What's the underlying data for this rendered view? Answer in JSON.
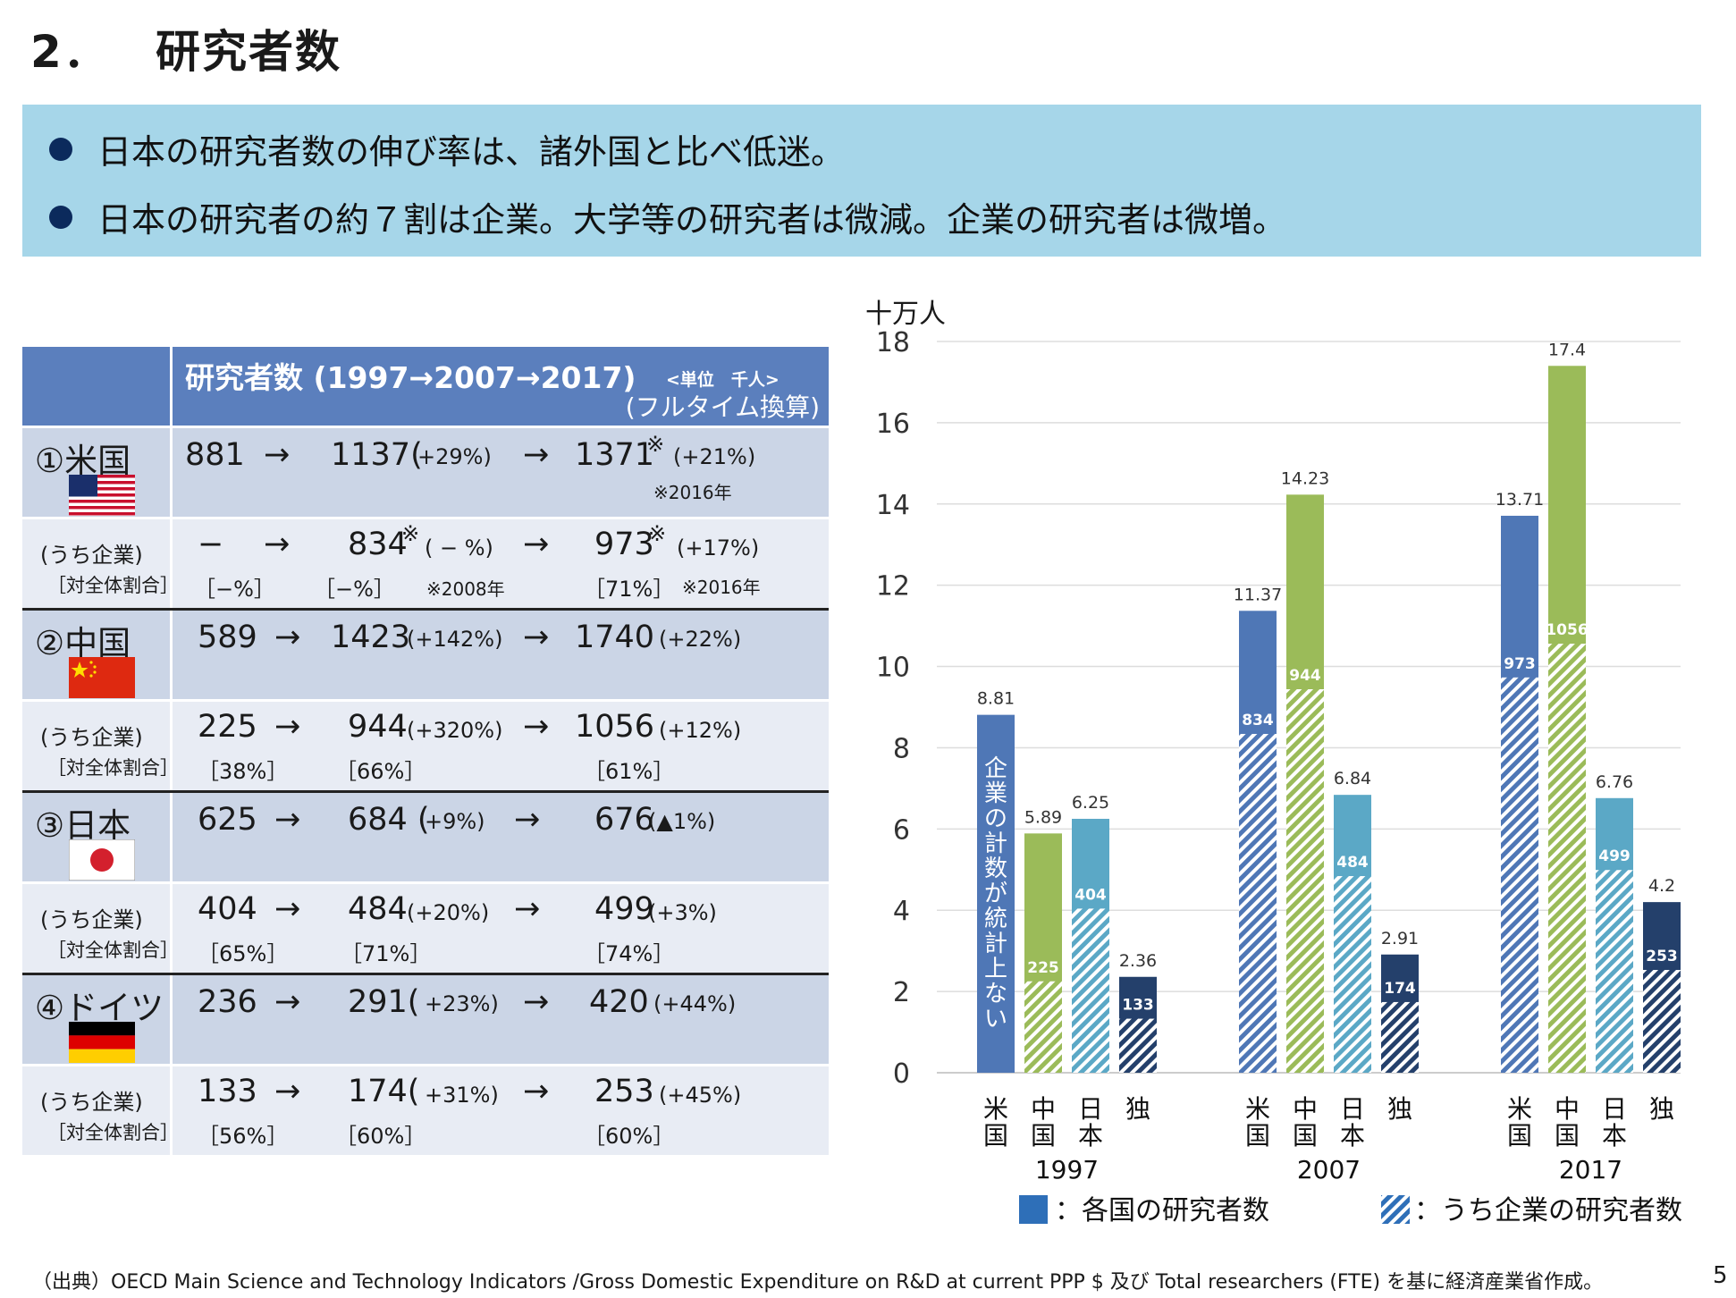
{
  "header": {
    "number": "2．",
    "title": "研究者数"
  },
  "bullets": [
    "日本の研究者数の伸び率は、諸外国と比べ低迷。",
    "日本の研究者の約７割は企業。大学等の研究者は微減。企業の研究者は微増。"
  ],
  "table": {
    "heading": "研究者数 (1997→2007→2017)",
    "unit": "<単位　千人>",
    "fte": "(フルタイム換算)",
    "sub_label": "(うち企業)",
    "share_label": "［対全体割合］",
    "arrow": "→",
    "countries": [
      {
        "name": "①米国",
        "total": {
          "v1997": "881",
          "v2007": "1137(",
          "p2007": "+29%)",
          "v2017": "1371",
          "mark2017": "※",
          "p2017": "(+21%)",
          "note2017": "※2016年"
        },
        "corp": {
          "v1997": "−",
          "v2007": "834",
          "mark2007": "※",
          "p2007": "( − %)",
          "v2017": "973",
          "mark2017": "※",
          "p2017": "(+17%)",
          "s1997": "［−%］",
          "s2007": "［−%］",
          "note2007": "※2008年",
          "s2017": "［71%］",
          "note2017": "※2016年"
        }
      },
      {
        "name": "②中国",
        "total": {
          "v1997": "589",
          "v2007": "1423",
          "p2007": "(+142%)",
          "v2017": "1740",
          "p2017": "(+22%)"
        },
        "corp": {
          "v1997": "225",
          "v2007": "944",
          "p2007": "(+320%)",
          "v2017": "1056",
          "p2017": "(+12%)",
          "s1997": "［38%］",
          "s2007": "［66%］",
          "s2017": "［61%］"
        }
      },
      {
        "name": "③日本",
        "total": {
          "v1997": "625",
          "v2007": "684 (",
          "p2007": "+9%)",
          "v2017": "676",
          "p2017": "(▲1%)"
        },
        "corp": {
          "v1997": "404",
          "v2007": "484",
          "p2007": "(+20%)",
          "v2017": "499",
          "p2017": "(+3%)",
          "s1997": "［65%］",
          "s2007": "［71%］",
          "s2017": "［74%］"
        }
      },
      {
        "name": "④ドイツ",
        "total": {
          "v1997": "236",
          "v2007": "291(",
          "p2007": "+23%)",
          "v2017": "420",
          "p2017": "(+44%)"
        },
        "corp": {
          "v1997": "133",
          "v2007": "174(",
          "p2007": "+31%)",
          "v2017": "253",
          "p2017": "(+45%)",
          "s1997": "［56%］",
          "s2007": "［60%］",
          "s2017": "［60%］"
        }
      }
    ]
  },
  "chart_data": {
    "type": "bar",
    "ylabel": "十万人",
    "ylim": [
      0,
      18
    ],
    "yticks": [
      0,
      2,
      4,
      6,
      8,
      10,
      12,
      14,
      16,
      18
    ],
    "grid": true,
    "years": [
      "1997",
      "2007",
      "2017"
    ],
    "countries": [
      "米国",
      "中国",
      "日本",
      "独"
    ],
    "country_labels": [
      "米\n国",
      "中\n国",
      "日\n本",
      "独"
    ],
    "colors": {
      "米国": "#4f77b6",
      "中国": "#9bbb59",
      "日本": "#5ba8c6",
      "独": "#24406b"
    },
    "series": [
      {
        "name": "各国の研究者数",
        "values": [
          [
            8.81,
            5.89,
            6.25,
            2.36
          ],
          [
            11.37,
            14.23,
            6.84,
            2.91
          ],
          [
            13.71,
            17.4,
            6.76,
            4.2
          ]
        ]
      },
      {
        "name": "うち企業の研究者数",
        "values": [
          [
            null,
            2.25,
            4.04,
            1.33
          ],
          [
            8.34,
            9.44,
            4.84,
            1.74
          ],
          [
            9.73,
            10.56,
            4.99,
            2.53
          ]
        ]
      }
    ],
    "total_labels": [
      [
        "8.81",
        "5.89",
        "6.25",
        "2.36"
      ],
      [
        "11.37",
        "14.23",
        "6.84",
        "2.91"
      ],
      [
        "13.71",
        "17.4",
        "6.76",
        "4.2"
      ]
    ],
    "corp_labels": [
      [
        null,
        "225",
        "404",
        "133"
      ],
      [
        "834",
        "944",
        "484",
        "174"
      ],
      [
        "973",
        "1056",
        "499",
        "253"
      ]
    ],
    "annotation": "企業の計数が統計上ない",
    "legend": [
      "：各国の研究者数",
      "：うち企業の研究者数"
    ]
  },
  "footer": {
    "source": "（出典）OECD  Main Science and Technology Indicators /Gross Domestic Expenditure on R&D at current PPP $ 及び Total researchers (FTE) を基に経済産業省作成。",
    "page": "5"
  }
}
